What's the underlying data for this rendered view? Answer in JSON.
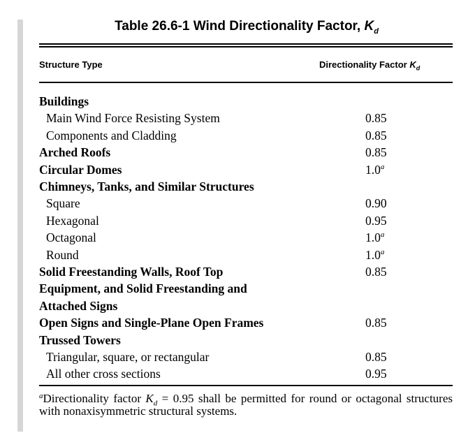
{
  "table": {
    "title": "Table 26.6-1 Wind Directionality Factor, ",
    "title_symbol": "K",
    "title_symbol_sub": "d",
    "col_structure_type": "Structure Type",
    "col_factor": "Directionality Factor ",
    "col_factor_symbol": "K",
    "col_factor_symbol_sub": "d"
  },
  "rows": [
    {
      "label": "Buildings",
      "value": "",
      "note": ""
    },
    {
      "label": "Main Wind Force Resisting System",
      "value": "0.85",
      "note": ""
    },
    {
      "label": "Components and Cladding",
      "value": "0.85",
      "note": ""
    },
    {
      "label": "Arched Roofs",
      "value": "0.85",
      "note": ""
    },
    {
      "label": "Circular Domes",
      "value": "1.0",
      "note": "a"
    },
    {
      "label": "Chimneys, Tanks, and Similar Structures",
      "value": "",
      "note": ""
    },
    {
      "label": "Square",
      "value": "0.90",
      "note": ""
    },
    {
      "label": "Hexagonal",
      "value": "0.95",
      "note": ""
    },
    {
      "label": "Octagonal",
      "value": "1.0",
      "note": "a"
    },
    {
      "label": "Round",
      "value": "1.0",
      "note": "a"
    },
    {
      "label": "Solid Freestanding Walls, Roof Top",
      "value": "0.85",
      "note": ""
    },
    {
      "label": "Equipment, and Solid Freestanding and",
      "value": "",
      "note": ""
    },
    {
      "label": "Attached Signs",
      "value": "",
      "note": ""
    },
    {
      "label": "Open Signs and Single-Plane Open Frames",
      "value": "0.85",
      "note": ""
    },
    {
      "label": "Trussed Towers",
      "value": "",
      "note": ""
    },
    {
      "label": "Triangular, square, or rectangular",
      "value": "0.85",
      "note": ""
    },
    {
      "label": "All other cross sections",
      "value": "0.95",
      "note": ""
    }
  ],
  "footnote": {
    "mark": "a",
    "text_before": "Directionality factor ",
    "symbol": "K",
    "symbol_sub": "d",
    "text_after": " = 0.95 shall be permitted for round or octagonal structures with nonaxisymmetric structural systems."
  }
}
